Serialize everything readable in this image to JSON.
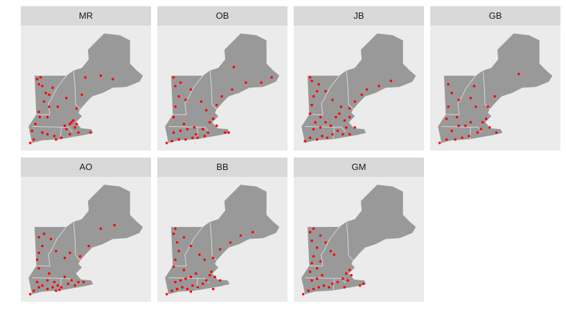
{
  "colors": {
    "panel_background": "#ebebeb",
    "strip_background": "#d9d9d9",
    "land": "#999999",
    "border": "#d8d8d8",
    "point": "#ff0000"
  },
  "facets": [
    {
      "label": "MR",
      "points": [
        [
          -73.1,
          42.9
        ],
        [
          -73.05,
          42.6
        ],
        [
          -73.3,
          42.2
        ],
        [
          -73.5,
          41.8
        ],
        [
          -72.9,
          41.7
        ],
        [
          -72.6,
          41.6
        ],
        [
          -72.2,
          41.5
        ],
        [
          -71.8,
          41.4
        ],
        [
          -71.3,
          41.6
        ],
        [
          -71.5,
          41.9
        ],
        [
          -71.2,
          42.3
        ],
        [
          -71.1,
          42.4
        ],
        [
          -70.9,
          42.2
        ],
        [
          -71.3,
          42.2
        ],
        [
          -71.6,
          42.1
        ],
        [
          -71.0,
          42.0
        ],
        [
          -72.5,
          43.9
        ],
        [
          -72.3,
          44.3
        ],
        [
          -72.7,
          44.0
        ],
        [
          -73.1,
          44.5
        ],
        [
          -73.2,
          44.8
        ],
        [
          -73.0,
          44.9
        ],
        [
          -72.9,
          44.4
        ],
        [
          -72.8,
          43.5
        ],
        [
          -72.5,
          43.2
        ],
        [
          -72.0,
          43.2
        ],
        [
          -71.5,
          43.7
        ],
        [
          -70.4,
          44.9
        ],
        [
          -69.5,
          45.0
        ],
        [
          -68.8,
          44.8
        ],
        [
          -70.6,
          43.9
        ],
        [
          -70.9,
          43.1
        ],
        [
          -72.6,
          42.6
        ],
        [
          -73.4,
          41.3
        ],
        [
          -73.6,
          41.1
        ],
        [
          -72.1,
          41.3
        ],
        [
          -70.8,
          41.7
        ],
        [
          -70.1,
          41.7
        ]
      ]
    },
    {
      "label": "OB",
      "points": [
        [
          -73.6,
          41.1
        ],
        [
          -73.3,
          41.2
        ],
        [
          -72.9,
          41.3
        ],
        [
          -72.5,
          41.3
        ],
        [
          -72.1,
          41.4
        ],
        [
          -71.8,
          41.4
        ],
        [
          -71.4,
          41.5
        ],
        [
          -71.2,
          41.7
        ],
        [
          -71.5,
          41.9
        ],
        [
          -71.1,
          42.3
        ],
        [
          -70.9,
          42.5
        ],
        [
          -70.7,
          42.1
        ],
        [
          -70.2,
          41.7
        ],
        [
          -73.2,
          41.7
        ],
        [
          -72.8,
          41.8
        ],
        [
          -72.4,
          41.9
        ],
        [
          -72.0,
          42.0
        ],
        [
          -72.6,
          42.2
        ],
        [
          -73.2,
          42.6
        ],
        [
          -73.1,
          43.2
        ],
        [
          -72.9,
          43.8
        ],
        [
          -73.1,
          44.4
        ],
        [
          -73.2,
          44.9
        ],
        [
          -72.8,
          44.6
        ],
        [
          -72.2,
          44.2
        ],
        [
          -72.5,
          43.6
        ],
        [
          -71.6,
          43.5
        ],
        [
          -71.3,
          43.0
        ],
        [
          -70.7,
          43.3
        ],
        [
          -70.4,
          43.8
        ],
        [
          -69.8,
          44.2
        ],
        [
          -69.0,
          44.6
        ],
        [
          -68.1,
          44.6
        ],
        [
          -67.5,
          44.9
        ],
        [
          -69.7,
          45.5
        ],
        [
          -71.9,
          41.6
        ],
        [
          -70.0,
          41.7
        ]
      ]
    },
    {
      "label": "JB",
      "points": [
        [
          -73.5,
          41.2
        ],
        [
          -73.2,
          41.4
        ],
        [
          -72.8,
          41.3
        ],
        [
          -72.5,
          41.5
        ],
        [
          -72.2,
          41.4
        ],
        [
          -71.9,
          41.6
        ],
        [
          -71.6,
          41.8
        ],
        [
          -71.3,
          41.6
        ],
        [
          -71.1,
          42.0
        ],
        [
          -71.2,
          42.4
        ],
        [
          -70.9,
          42.6
        ],
        [
          -70.6,
          42.0
        ],
        [
          -70.9,
          41.6
        ],
        [
          -73.0,
          41.9
        ],
        [
          -72.6,
          42.0
        ],
        [
          -72.3,
          42.3
        ],
        [
          -72.0,
          42.1
        ],
        [
          -72.6,
          42.6
        ],
        [
          -73.2,
          42.8
        ],
        [
          -73.1,
          43.3
        ],
        [
          -73.0,
          43.8
        ],
        [
          -72.8,
          44.1
        ],
        [
          -73.1,
          44.7
        ],
        [
          -73.2,
          44.9
        ],
        [
          -72.7,
          44.5
        ],
        [
          -72.3,
          44.1
        ],
        [
          -71.9,
          43.6
        ],
        [
          -71.4,
          43.2
        ],
        [
          -70.9,
          43.1
        ],
        [
          -70.6,
          43.5
        ],
        [
          -70.2,
          43.9
        ],
        [
          -69.9,
          44.2
        ],
        [
          -69.2,
          44.4
        ],
        [
          -68.5,
          44.7
        ],
        [
          -71.5,
          42.8
        ],
        [
          -71.7,
          42.6
        ],
        [
          -72.9,
          42.3
        ]
      ]
    },
    {
      "label": "GB",
      "points": [
        [
          -73.6,
          41.1
        ],
        [
          -73.2,
          41.3
        ],
        [
          -72.7,
          41.3
        ],
        [
          -72.3,
          41.4
        ],
        [
          -71.9,
          41.5
        ],
        [
          -71.4,
          41.7
        ],
        [
          -71.2,
          41.9
        ],
        [
          -71.1,
          42.3
        ],
        [
          -70.9,
          42.5
        ],
        [
          -70.7,
          42.0
        ],
        [
          -70.3,
          41.7
        ],
        [
          -72.9,
          41.8
        ],
        [
          -72.5,
          42.1
        ],
        [
          -72.6,
          42.6
        ],
        [
          -71.8,
          42.3
        ],
        [
          -72.1,
          42.1
        ],
        [
          -73.2,
          42.5
        ],
        [
          -73.1,
          43.2
        ],
        [
          -72.9,
          44.0
        ],
        [
          -73.1,
          44.5
        ],
        [
          -72.5,
          43.6
        ],
        [
          -71.8,
          43.7
        ],
        [
          -71.5,
          43.2
        ],
        [
          -70.8,
          43.2
        ],
        [
          -71.6,
          44.4
        ],
        [
          -69.0,
          45.1
        ],
        [
          -70.4,
          43.8
        ]
      ]
    },
    {
      "label": "AO",
      "points": [
        [
          -73.6,
          41.1
        ],
        [
          -73.4,
          41.3
        ],
        [
          -73.1,
          41.5
        ],
        [
          -72.9,
          41.6
        ],
        [
          -72.6,
          41.4
        ],
        [
          -72.3,
          41.5
        ],
        [
          -72.0,
          41.6
        ],
        [
          -71.8,
          41.5
        ],
        [
          -72.2,
          41.8
        ],
        [
          -72.6,
          41.9
        ],
        [
          -73.2,
          41.8
        ],
        [
          -71.4,
          41.7
        ],
        [
          -71.2,
          41.9
        ],
        [
          -71.0,
          41.6
        ],
        [
          -70.8,
          41.8
        ],
        [
          -70.5,
          41.8
        ],
        [
          -71.6,
          42.1
        ],
        [
          -72.5,
          42.3
        ],
        [
          -73.1,
          42.6
        ],
        [
          -73.2,
          43.1
        ],
        [
          -73.1,
          43.5
        ],
        [
          -72.9,
          43.9
        ],
        [
          -73.1,
          44.4
        ],
        [
          -72.8,
          44.6
        ],
        [
          -72.4,
          44.3
        ],
        [
          -72.1,
          43.6
        ],
        [
          -71.6,
          43.2
        ],
        [
          -71.3,
          43.5
        ],
        [
          -70.7,
          43.3
        ],
        [
          -70.2,
          43.9
        ],
        [
          -69.5,
          44.9
        ],
        [
          -68.7,
          45.1
        ],
        [
          -72.1,
          41.3
        ],
        [
          -71.9,
          41.35
        ]
      ]
    },
    {
      "label": "BB",
      "points": [
        [
          -73.6,
          41.1
        ],
        [
          -73.3,
          41.3
        ],
        [
          -73.0,
          41.4
        ],
        [
          -72.7,
          41.5
        ],
        [
          -72.4,
          41.4
        ],
        [
          -72.1,
          41.6
        ],
        [
          -71.8,
          41.5
        ],
        [
          -71.5,
          41.7
        ],
        [
          -71.3,
          41.9
        ],
        [
          -71.1,
          42.2
        ],
        [
          -71.0,
          42.4
        ],
        [
          -70.8,
          42.1
        ],
        [
          -70.5,
          41.9
        ],
        [
          -73.1,
          41.8
        ],
        [
          -72.8,
          41.9
        ],
        [
          -72.5,
          42.0
        ],
        [
          -72.2,
          42.1
        ],
        [
          -71.9,
          42.3
        ],
        [
          -72.6,
          42.5
        ],
        [
          -73.2,
          42.7
        ],
        [
          -73.1,
          43.1
        ],
        [
          -72.9,
          43.6
        ],
        [
          -73.0,
          44.1
        ],
        [
          -73.2,
          44.6
        ],
        [
          -73.1,
          44.9
        ],
        [
          -72.6,
          44.4
        ],
        [
          -72.2,
          43.9
        ],
        [
          -71.7,
          43.4
        ],
        [
          -71.4,
          43.1
        ],
        [
          -70.9,
          43.2
        ],
        [
          -70.5,
          43.7
        ],
        [
          -69.9,
          44.1
        ],
        [
          -69.3,
          44.5
        ],
        [
          -68.6,
          44.7
        ],
        [
          -70.9,
          41.4
        ],
        [
          -72.2,
          41.25
        ]
      ]
    },
    {
      "label": "GM",
      "points": [
        [
          -73.6,
          41.1
        ],
        [
          -73.3,
          41.3
        ],
        [
          -73.0,
          41.4
        ],
        [
          -72.7,
          41.5
        ],
        [
          -72.4,
          41.6
        ],
        [
          -72.1,
          41.5
        ],
        [
          -71.9,
          41.7
        ],
        [
          -71.6,
          41.8
        ],
        [
          -71.3,
          42.0
        ],
        [
          -71.1,
          42.3
        ],
        [
          -70.9,
          42.5
        ],
        [
          -70.8,
          42.2
        ],
        [
          -71.0,
          41.9
        ],
        [
          -73.1,
          41.9
        ],
        [
          -72.8,
          42.0
        ],
        [
          -72.5,
          42.2
        ],
        [
          -72.8,
          42.6
        ],
        [
          -73.1,
          42.9
        ],
        [
          -73.0,
          43.3
        ],
        [
          -72.8,
          43.8
        ],
        [
          -73.1,
          44.2
        ],
        [
          -73.2,
          44.7
        ],
        [
          -73.0,
          44.9
        ],
        [
          -72.6,
          44.5
        ],
        [
          -72.3,
          44.1
        ],
        [
          -72.0,
          43.6
        ],
        [
          -71.8,
          43.4
        ],
        [
          -72.6,
          43.0
        ],
        [
          -70.3,
          41.6
        ],
        [
          -70.1,
          41.7
        ],
        [
          -71.2,
          41.5
        ],
        [
          -73.2,
          42.4
        ]
      ]
    }
  ]
}
